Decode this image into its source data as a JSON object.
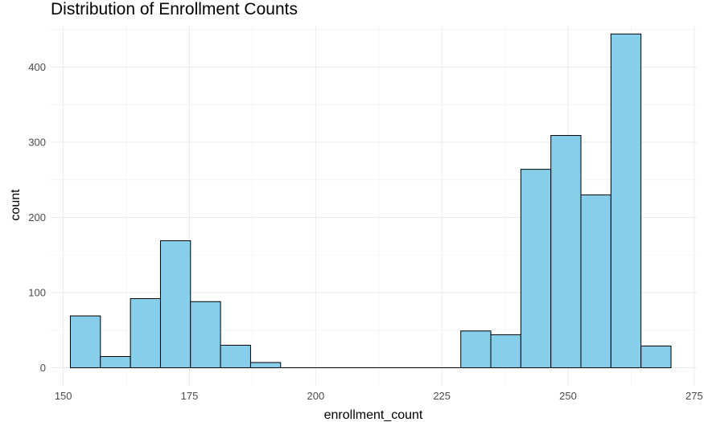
{
  "chart_data": {
    "type": "bar",
    "title": "Distribution of Enrollment Counts",
    "xlabel": "enrollment_count",
    "ylabel": "count",
    "xlim": [
      147.5,
      275.5
    ],
    "ylim": [
      -24,
      455
    ],
    "x_ticks": [
      150,
      175,
      200,
      225,
      250,
      275
    ],
    "y_ticks": [
      0,
      100,
      200,
      300,
      400
    ],
    "bin_width": 5.95,
    "bins": [
      {
        "start": 151.4,
        "count": 69
      },
      {
        "start": 157.35,
        "count": 15
      },
      {
        "start": 163.3,
        "count": 92
      },
      {
        "start": 169.25,
        "count": 169
      },
      {
        "start": 175.2,
        "count": 88
      },
      {
        "start": 181.15,
        "count": 30
      },
      {
        "start": 187.1,
        "count": 7
      },
      {
        "start": 193.05,
        "count": 0
      },
      {
        "start": 199.0,
        "count": 0
      },
      {
        "start": 204.95,
        "count": 0
      },
      {
        "start": 210.9,
        "count": 0
      },
      {
        "start": 216.85,
        "count": 0
      },
      {
        "start": 222.8,
        "count": 0
      },
      {
        "start": 228.75,
        "count": 49
      },
      {
        "start": 234.7,
        "count": 44
      },
      {
        "start": 240.65,
        "count": 264
      },
      {
        "start": 246.6,
        "count": 309
      },
      {
        "start": 252.55,
        "count": 230
      },
      {
        "start": 258.5,
        "count": 444
      },
      {
        "start": 264.45,
        "count": 29
      }
    ],
    "bar_fill": "#87ceeb",
    "bar_outline": "#000000",
    "grid": true,
    "legend": "none"
  }
}
